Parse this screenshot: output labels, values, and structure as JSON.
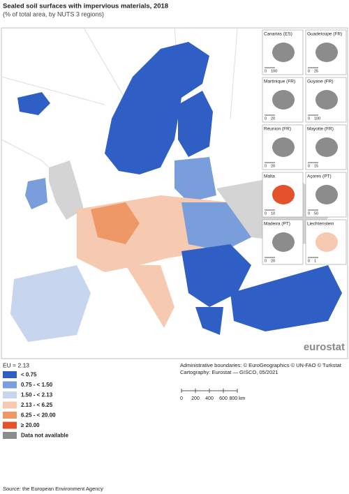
{
  "header": {
    "title": "Sealed soil surfaces with impervious materials, 2018",
    "subtitle": "(% of total area, by NUTS 3 regions)"
  },
  "insets": [
    {
      "name": "Canarias (ES)",
      "scale": [
        0,
        100
      ]
    },
    {
      "name": "Guadeloupe (FR)",
      "scale": [
        0,
        25
      ]
    },
    {
      "name": "Martinique (FR)",
      "scale": [
        0,
        20
      ]
    },
    {
      "name": "Guyane (FR)",
      "scale": [
        0,
        100
      ]
    },
    {
      "name": "Réunion (FR)",
      "scale": [
        0,
        20
      ]
    },
    {
      "name": "Mayotte (FR)",
      "scale": [
        0,
        15
      ]
    },
    {
      "name": "Malta",
      "scale": [
        0,
        10
      ]
    },
    {
      "name": "Açores (PT)",
      "scale": [
        0,
        50
      ]
    },
    {
      "name": "Madeira (PT)",
      "scale": [
        0,
        20
      ]
    },
    {
      "name": "Liechtenstein",
      "scale": [
        0,
        1
      ]
    }
  ],
  "logo": "eurostat",
  "legend": {
    "eu": "EU = 2.13",
    "items": [
      {
        "label": "< 0.75",
        "color": "#2f5fc4"
      },
      {
        "label": "0.75 - < 1.50",
        "color": "#7a9edb"
      },
      {
        "label": "1.50 - < 2.13",
        "color": "#c8d5ef"
      },
      {
        "label": "2.13 - < 6.25",
        "color": "#f6cab0"
      },
      {
        "label": "6.25 - < 20.00",
        "color": "#ee9868"
      },
      {
        "label": "≥ 20.00",
        "color": "#e3522a"
      },
      {
        "label": "Data not available",
        "color": "#8c8c8c"
      }
    ]
  },
  "credits": [
    "Administrative boundaries: © EuroGeographics © UN-FAO © Turkstat",
    "Cartography: Eurostat — GISCO, 05/2021"
  ],
  "scale_bar": [
    "0",
    "200",
    "400",
    "600",
    "800 km"
  ],
  "source_label": "Source:",
  "source": "the European Environment Agency"
}
